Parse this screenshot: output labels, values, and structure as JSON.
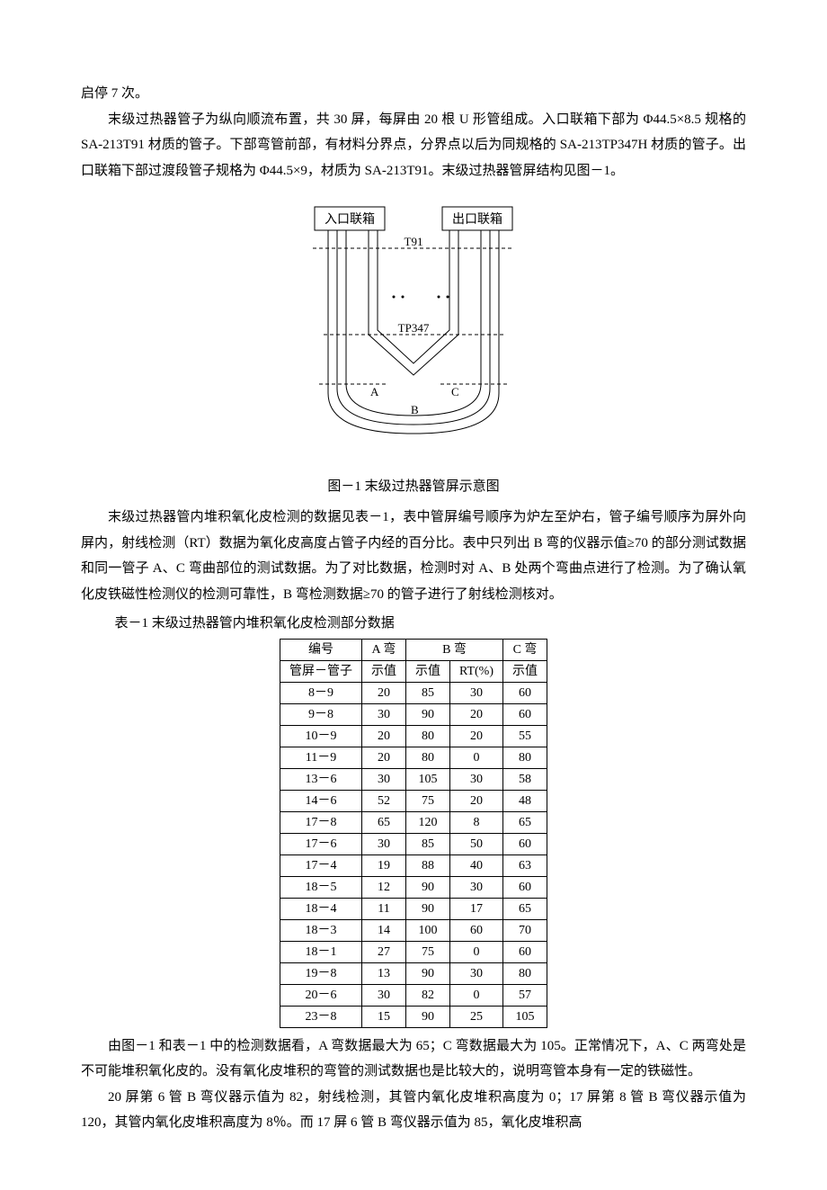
{
  "intro": {
    "p1": "启停 7 次。",
    "p2": "末级过热器管子为纵向顺流布置，共 30 屏，每屏由 20 根 U 形管组成。入口联箱下部为 Φ44.5×8.5 规格的 SA-213T91 材质的管子。下部弯管前部，有材料分界点，分界点以后为同规格的 SA-213TP347H 材质的管子。出口联箱下部过渡段管子规格为 Φ44.5×9，材质为 SA-213T91。末级过热器管屏结构见图－1。"
  },
  "figure1": {
    "caption": "图－1  末级过热器管屏示意图",
    "labels": {
      "inlet": "入口联箱",
      "outlet": "出口联箱",
      "t91": "T91",
      "tp347": "TP347",
      "a": "A",
      "b": "B",
      "c": "C"
    },
    "style": {
      "stroke": "#000000",
      "stroke_width": 1,
      "dash": "4 3",
      "box_fill": "#ffffff",
      "font_size_box": 14,
      "font_size_label": 13
    }
  },
  "mid": {
    "p1": "末级过热器管内堆积氧化皮检测的数据见表－1，表中管屏编号顺序为炉左至炉右，管子编号顺序为屏外向屏内，射线检测（RT）数据为氧化皮高度占管子内经的百分比。表中只列出 B 弯的仪器示值≥70 的部分测试数据和同一管子 A、C 弯曲部位的测试数据。为了对比数据，检测时对 A、B 处两个弯曲点进行了检测。为了确认氧化皮铁磁性检测仪的检测可靠性，B 弯检测数据≥70 的管子进行了射线检测核对。"
  },
  "table1": {
    "caption": "表－1  末级过热器管内堆积氧化皮检测部分数据",
    "headers": {
      "id": "编号",
      "a": "A 弯",
      "b": "B 弯",
      "c": "C 弯",
      "sub_id": "管屏－管子",
      "sub_val": "示值",
      "sub_rt": "RT(%)"
    },
    "rows": [
      {
        "id": "8－9",
        "a": "20",
        "b": "85",
        "rt": "30",
        "c": "60"
      },
      {
        "id": "9－8",
        "a": "30",
        "b": "90",
        "rt": "20",
        "c": "60"
      },
      {
        "id": "10－9",
        "a": "20",
        "b": "80",
        "rt": "20",
        "c": "55"
      },
      {
        "id": "11－9",
        "a": "20",
        "b": "80",
        "rt": "0",
        "c": "80"
      },
      {
        "id": "13－6",
        "a": "30",
        "b": "105",
        "rt": "30",
        "c": "58"
      },
      {
        "id": "14－6",
        "a": "52",
        "b": "75",
        "rt": "20",
        "c": "48"
      },
      {
        "id": "17－8",
        "a": "65",
        "b": "120",
        "rt": "8",
        "c": "65"
      },
      {
        "id": "17－6",
        "a": "30",
        "b": "85",
        "rt": "50",
        "c": "60"
      },
      {
        "id": "17－4",
        "a": "19",
        "b": "88",
        "rt": "40",
        "c": "63"
      },
      {
        "id": "18－5",
        "a": "12",
        "b": "90",
        "rt": "30",
        "c": "60"
      },
      {
        "id": "18－4",
        "a": "11",
        "b": "90",
        "rt": "17",
        "c": "65"
      },
      {
        "id": "18－3",
        "a": "14",
        "b": "100",
        "rt": "60",
        "c": "70"
      },
      {
        "id": "18－1",
        "a": "27",
        "b": "75",
        "rt": "0",
        "c": "60"
      },
      {
        "id": "19－8",
        "a": "13",
        "b": "90",
        "rt": "30",
        "c": "80"
      },
      {
        "id": "20－6",
        "a": "30",
        "b": "82",
        "rt": "0",
        "c": "57"
      },
      {
        "id": "23－8",
        "a": "15",
        "b": "90",
        "rt": "25",
        "c": "105"
      }
    ],
    "style": {
      "border_color": "#000000",
      "font_size": 14
    }
  },
  "outro": {
    "p1": "由图－1 和表－1 中的检测数据看，A 弯数据最大为 65；C 弯数据最大为 105。正常情况下，A、C 两弯处是不可能堆积氧化皮的。没有氧化皮堆积的弯管的测试数据也是比较大的，说明弯管本身有一定的铁磁性。",
    "p2": "20 屏第 6 管 B 弯仪器示值为 82，射线检测，其管内氧化皮堆积高度为 0；17 屏第 8 管 B 弯仪器示值为 120，其管内氧化皮堆积高度为 8％。而 17 屏 6 管 B 弯仪器示值为 85，氧化皮堆积高"
  }
}
